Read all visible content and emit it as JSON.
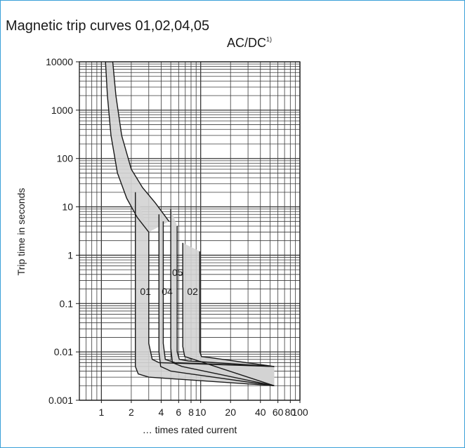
{
  "header": {
    "title": "Magnetic trip curves 01,02,04,05",
    "subtitle_main": "AC/DC",
    "subtitle_sup": "1)"
  },
  "chart_data": {
    "type": "area",
    "title": "Magnetic trip curves 01,02,04,05",
    "subtitle": "AC/DC 1)",
    "xlabel": "… times rated current",
    "ylabel": "Trip time in seconds",
    "xscale": "log",
    "yscale": "log",
    "xlim": [
      0.6,
      100
    ],
    "ylim": [
      0.001,
      10000
    ],
    "grid": true,
    "x_ticks": [
      1,
      2,
      4,
      6,
      8,
      10,
      20,
      40,
      60,
      80,
      100
    ],
    "x_tick_labels": [
      "1",
      "2",
      "4",
      "6",
      "8",
      "10",
      "20",
      "40",
      "60",
      "80",
      "100"
    ],
    "y_ticks": [
      0.001,
      0.01,
      0.1,
      1,
      10,
      100,
      1000,
      10000
    ],
    "y_tick_labels": [
      "0.001",
      "0.01",
      "0.1",
      "1",
      "10",
      "100",
      "1000",
      "10000"
    ],
    "band_fill": "#d3d3d3",
    "line_color": "#1a1a1a",
    "common_band": {
      "lower": [
        [
          1.1,
          10000
        ],
        [
          1.15,
          2000
        ],
        [
          1.25,
          300
        ],
        [
          1.45,
          50
        ],
        [
          1.8,
          15
        ],
        [
          2.3,
          6
        ],
        [
          3.0,
          3
        ]
      ],
      "upper": [
        [
          1.3,
          10000
        ],
        [
          1.4,
          2000
        ],
        [
          1.6,
          300
        ],
        [
          2.0,
          60
        ],
        [
          2.6,
          25
        ],
        [
          3.5,
          12
        ],
        [
          4.8,
          5
        ]
      ]
    },
    "series": [
      {
        "name": "01",
        "lower": [
          [
            2.2,
            20
          ],
          [
            2.2,
            0.005
          ],
          [
            2.35,
            0.0035
          ],
          [
            3.0,
            0.003
          ],
          [
            55,
            0.002
          ]
        ],
        "upper": [
          [
            3.0,
            3
          ],
          [
            3.0,
            0.015
          ],
          [
            3.25,
            0.007
          ],
          [
            3.8,
            0.006
          ],
          [
            55,
            0.005
          ]
        ]
      },
      {
        "name": "04",
        "lower": [
          [
            3.8,
            7
          ],
          [
            3.8,
            0.01
          ],
          [
            3.95,
            0.005
          ],
          [
            5.0,
            0.004
          ],
          [
            55,
            0.002
          ]
        ],
        "upper": [
          [
            4.2,
            5
          ],
          [
            4.2,
            0.015
          ],
          [
            4.4,
            0.007
          ],
          [
            5.5,
            0.006
          ],
          [
            55,
            0.005
          ]
        ]
      },
      {
        "name": "05",
        "lower": [
          [
            5.0,
            9
          ],
          [
            5.0,
            0.012
          ],
          [
            5.2,
            0.006
          ],
          [
            6.5,
            0.005
          ],
          [
            55,
            0.002
          ]
        ],
        "upper": [
          [
            5.8,
            4
          ],
          [
            5.8,
            0.01
          ],
          [
            6.1,
            0.007
          ],
          [
            7.5,
            0.0065
          ],
          [
            55,
            0.005
          ]
        ]
      },
      {
        "name": "02",
        "lower": [
          [
            6.6,
            1.8
          ],
          [
            6.6,
            0.013
          ],
          [
            6.9,
            0.008
          ],
          [
            8.5,
            0.007
          ],
          [
            55,
            0.002
          ]
        ],
        "upper": [
          [
            9.8,
            1.2
          ],
          [
            9.8,
            0.01
          ],
          [
            10.2,
            0.008
          ],
          [
            13,
            0.0075
          ],
          [
            55,
            0.005
          ]
        ]
      }
    ],
    "annotations": [
      {
        "text": "01",
        "x": 2.45,
        "y": 0.15
      },
      {
        "text": "04",
        "x": 4.05,
        "y": 0.15
      },
      {
        "text": "05",
        "x": 5.15,
        "y": 0.37
      },
      {
        "text": "02",
        "x": 7.3,
        "y": 0.15
      }
    ]
  }
}
